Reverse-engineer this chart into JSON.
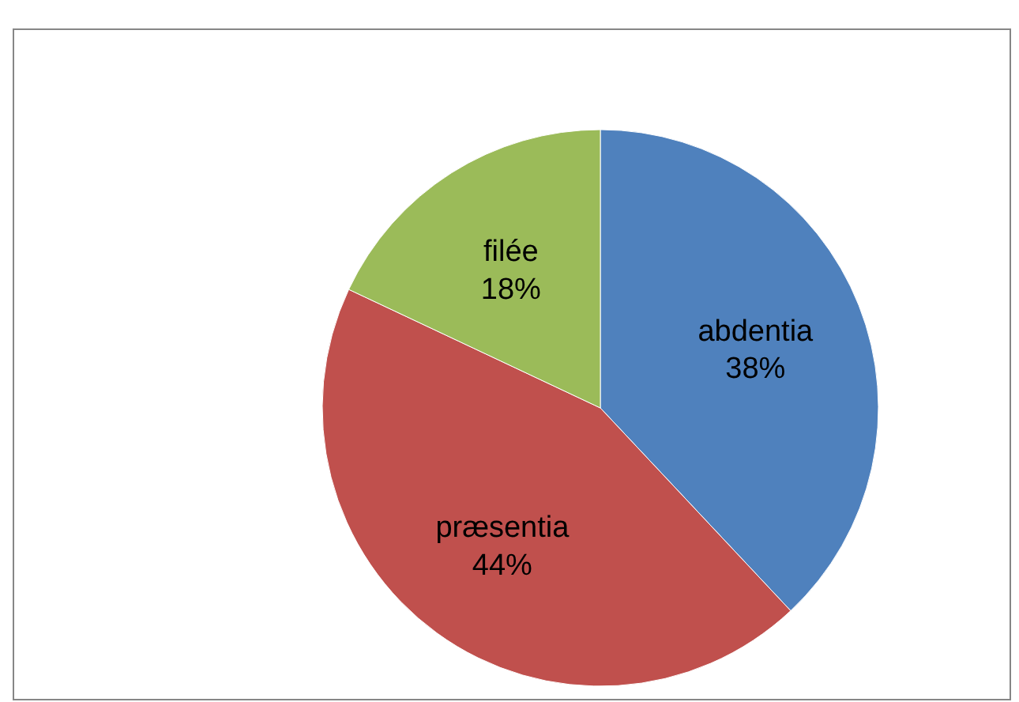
{
  "chart_data": {
    "type": "pie",
    "categories": [
      "abdentia",
      "præsentia",
      "filée"
    ],
    "values": [
      38,
      44,
      18
    ],
    "colors": [
      "#4f81bd",
      "#c0504d",
      "#9bbb59"
    ],
    "value_labels": [
      "38%",
      "44%",
      "18%"
    ],
    "legend": false
  }
}
